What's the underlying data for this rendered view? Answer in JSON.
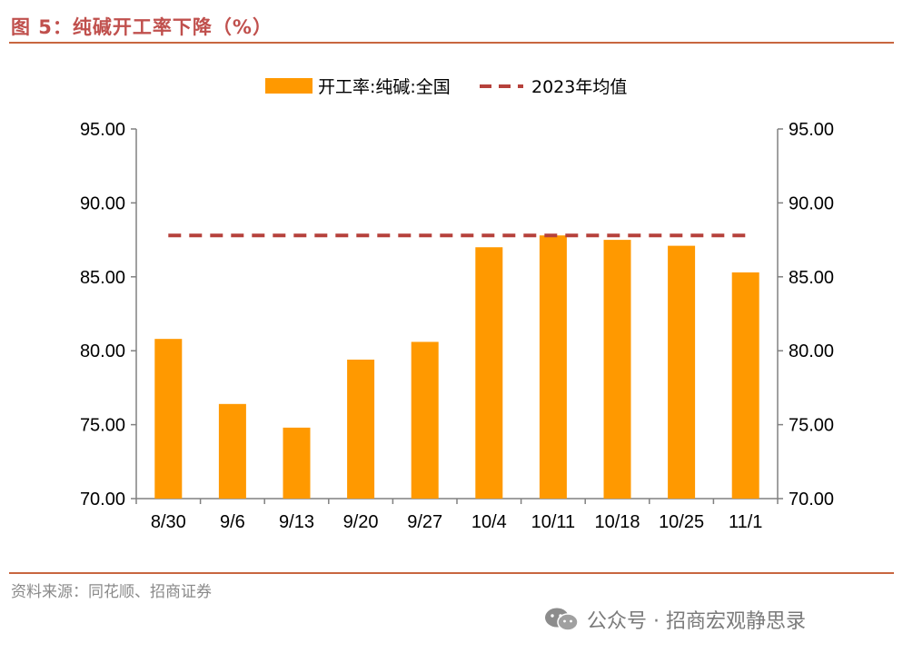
{
  "figure": {
    "title": "图 5：纯碱开工率下降（%）",
    "source": "资料来源：同花顺、招商证券",
    "watermark": "公众号 · 招商宏观静思录"
  },
  "colors": {
    "bar": "#ff9900",
    "avg_line": "#b6413b",
    "accent": "#c0504d",
    "axis": "#808080"
  },
  "chart_data": {
    "type": "bar",
    "categories": [
      "8/30",
      "9/6",
      "9/13",
      "9/20",
      "9/27",
      "10/4",
      "10/11",
      "10/18",
      "10/25",
      "11/1"
    ],
    "series": [
      {
        "name": "开工率:纯碱:全国",
        "type": "bar",
        "values": [
          80.8,
          76.4,
          74.8,
          79.4,
          80.6,
          87.0,
          87.8,
          87.5,
          87.1,
          85.3
        ]
      },
      {
        "name": "2023年均值",
        "type": "line",
        "style": "dashed",
        "values": [
          87.8,
          87.8,
          87.8,
          87.8,
          87.8,
          87.8,
          87.8,
          87.8,
          87.8,
          87.8
        ]
      }
    ],
    "ylim": [
      70,
      95
    ],
    "yticks": [
      "70.00",
      "75.00",
      "80.00",
      "85.00",
      "90.00",
      "95.00"
    ],
    "y2ticks": [
      "70.00",
      "75.00",
      "80.00",
      "85.00",
      "90.00",
      "95.00"
    ],
    "legend_position": "top",
    "grid": false
  }
}
